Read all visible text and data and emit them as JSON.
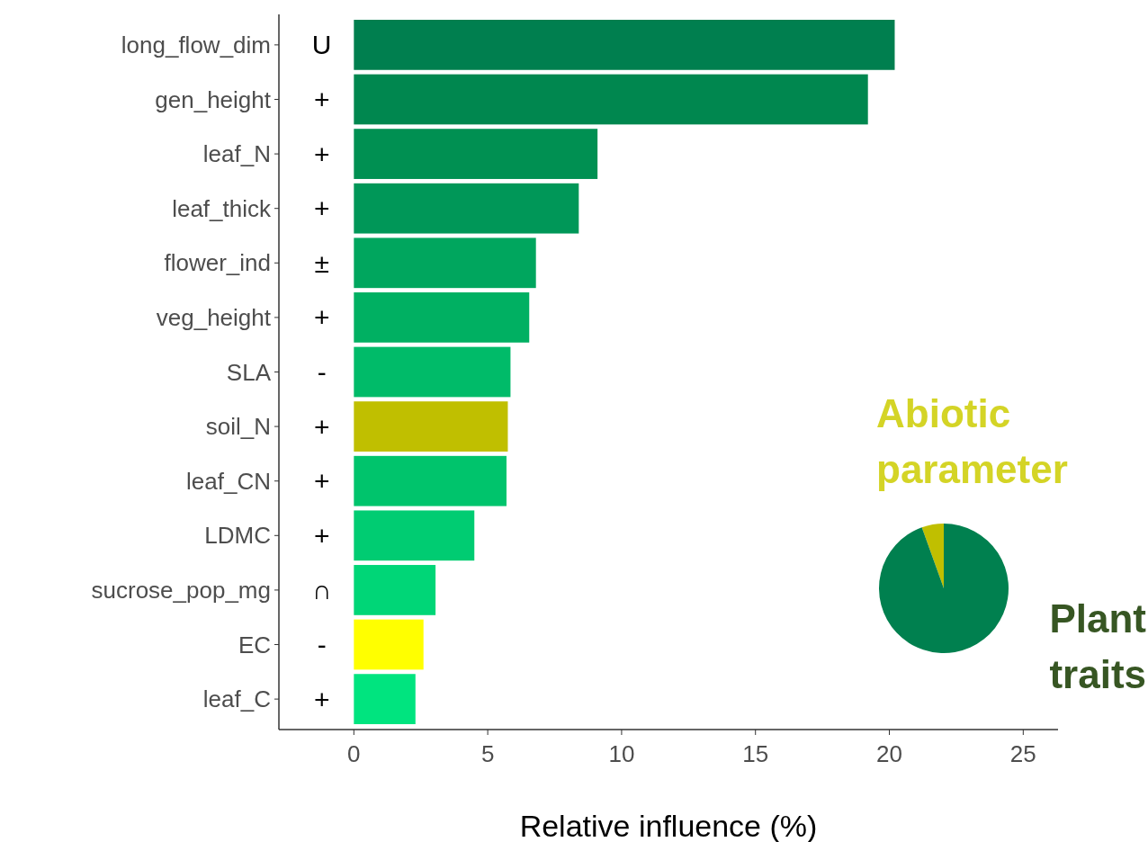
{
  "chart_data": [
    {
      "type": "bar",
      "orientation": "horizontal",
      "xlabel": "Relative influence (%)",
      "categories": [
        "long_flow_dim",
        "gen_height",
        "leaf_N",
        "leaf_thick",
        "flower_ind",
        "veg_height",
        "SLA",
        "soil_N",
        "leaf_CN",
        "LDMC",
        "sucrose_pop_mg",
        "EC",
        "leaf_C"
      ],
      "values": [
        20.2,
        19.2,
        9.1,
        8.4,
        6.8,
        6.55,
        5.85,
        5.75,
        5.7,
        4.5,
        3.05,
        2.6,
        2.3
      ],
      "colors": [
        "#007f4f",
        "#00874f",
        "#009052",
        "#009758",
        "#00a65e",
        "#00b062",
        "#00bb69",
        "#c0bf00",
        "#00c46c",
        "#00cc72",
        "#00d677",
        "#ffff00",
        "#00e47f"
      ],
      "xlim": [
        -2.8,
        26.3
      ],
      "xticks": [
        0,
        5,
        10,
        15,
        20,
        25
      ],
      "grid": false,
      "annotations": [
        "U",
        "+",
        "+",
        "+",
        "±",
        "+",
        "-",
        "+",
        "+",
        "+",
        "∩",
        "-",
        "+"
      ]
    },
    {
      "type": "pie",
      "categories": [
        "Abiotic parameter",
        "Plant traits"
      ],
      "values": [
        5.5,
        94.5
      ],
      "colors": [
        "#c0bf00",
        "#00804f"
      ]
    }
  ]
}
